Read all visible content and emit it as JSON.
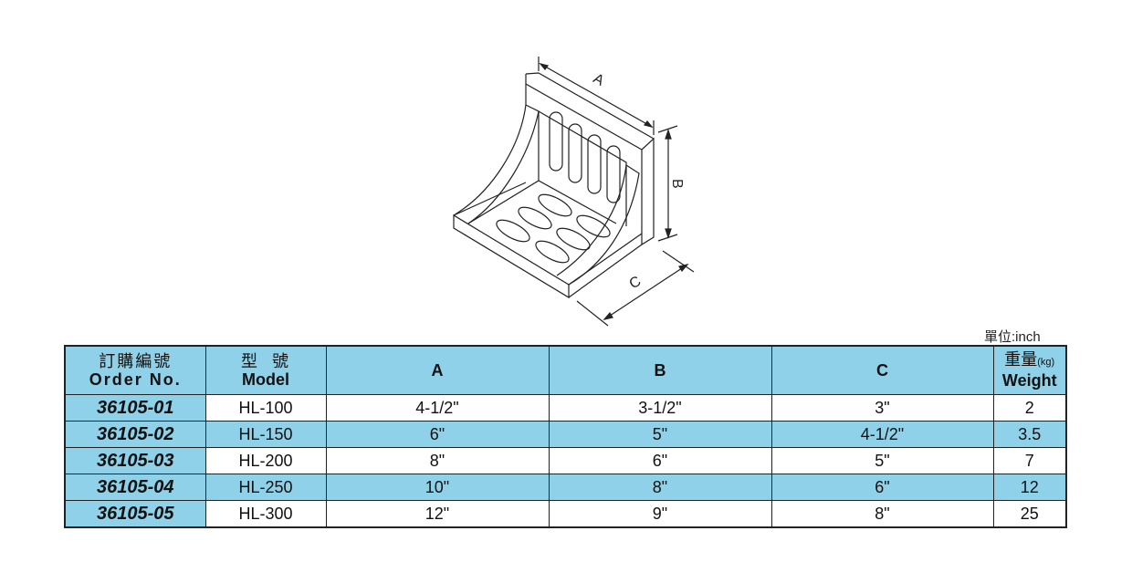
{
  "unit_label": "單位:inch",
  "drawing_labels": {
    "a": "A",
    "b": "B",
    "c": "C"
  },
  "header": {
    "order_zh": "訂購編號",
    "order_en": "Order No.",
    "model_zh": "型  號",
    "model_en": "Model",
    "a": "A",
    "b": "B",
    "c": "C",
    "weight_zh": "重量",
    "weight_unit": "(kg)",
    "weight_en": "Weight"
  },
  "rows": [
    {
      "order": "36105-01",
      "model": "HL-100",
      "a": "4-1/2\"",
      "b": "3-1/2\"",
      "c": "3\"",
      "weight": "2"
    },
    {
      "order": "36105-02",
      "model": "HL-150",
      "a": "6\"",
      "b": "5\"",
      "c": "4-1/2\"",
      "weight": "3.5"
    },
    {
      "order": "36105-03",
      "model": "HL-200",
      "a": "8\"",
      "b": "6\"",
      "c": "5\"",
      "weight": "7"
    },
    {
      "order": "36105-04",
      "model": "HL-250",
      "a": "10\"",
      "b": "8\"",
      "c": "6\"",
      "weight": "12"
    },
    {
      "order": "36105-05",
      "model": "HL-300",
      "a": "12\"",
      "b": "9\"",
      "c": "8\"",
      "weight": "25"
    }
  ],
  "colors": {
    "row_highlight": "#8ed1e8"
  }
}
